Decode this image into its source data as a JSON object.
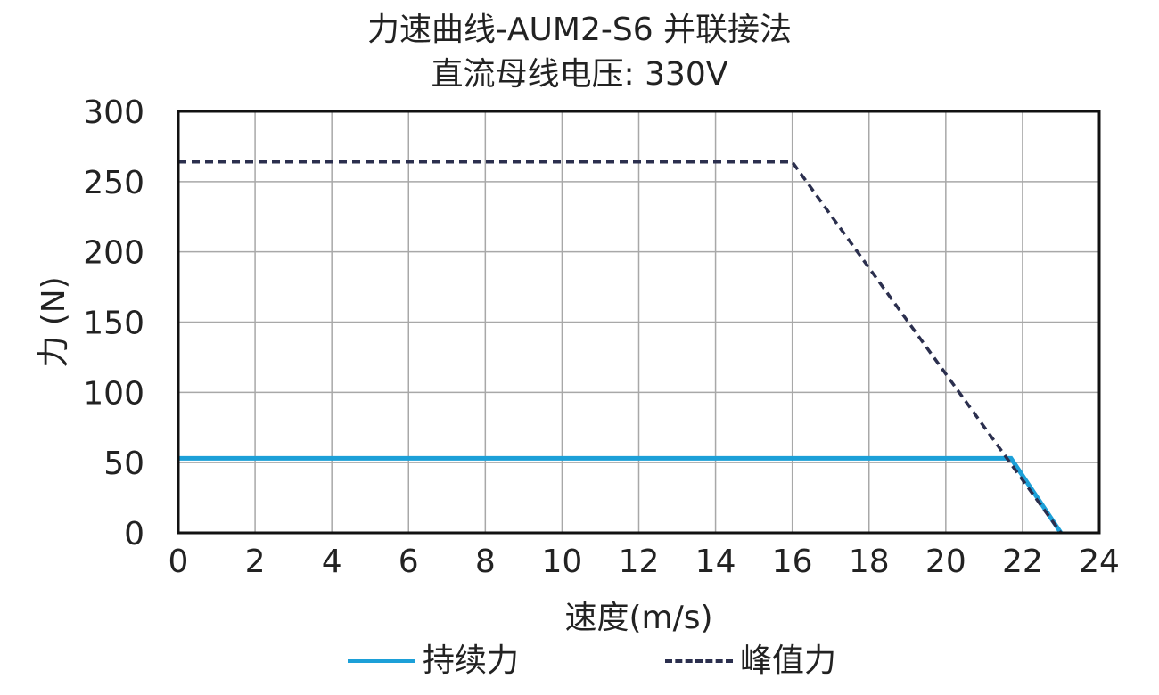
{
  "chart_data": {
    "type": "line",
    "title": "力速曲线-AUM2-S6 并联接法",
    "subtitle": "直流母线电压: 330V",
    "xlabel": "速度(m/s)",
    "ylabel": "力 (N)",
    "xlim": [
      0,
      24
    ],
    "ylim": [
      0,
      300
    ],
    "xticks": [
      "0",
      "2",
      "4",
      "6",
      "8",
      "10",
      "12",
      "14",
      "16",
      "18",
      "20",
      "22",
      "24"
    ],
    "yticks": [
      "0",
      "50",
      "100",
      "150",
      "200",
      "250",
      "300"
    ],
    "grid": true,
    "legend_position": "bottom",
    "series": [
      {
        "name": "持续力",
        "style": "solid",
        "color": "#1ca0d8",
        "x": [
          0,
          21.7,
          23
        ],
        "y": [
          53,
          53,
          0
        ]
      },
      {
        "name": "峰值力",
        "style": "dashed",
        "color": "#2b2f4e",
        "x": [
          0,
          16,
          23
        ],
        "y": [
          264,
          264,
          0
        ]
      }
    ]
  }
}
